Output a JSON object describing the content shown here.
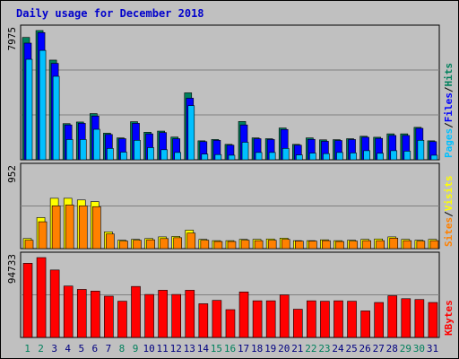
{
  "title": "Daily usage for December 2018",
  "colors": {
    "hits": "#00805c",
    "files": "#0000ff",
    "pages": "#00c0ff",
    "visits": "#ffff00",
    "sites": "#ff8000",
    "kbytes": "#ff0000",
    "weekend_label": "#00805c",
    "weekday_label": "#000080"
  },
  "chart_data": [
    {
      "type": "bar",
      "scale_label": "7975",
      "ylim": [
        0,
        7975
      ],
      "categories": [
        "1",
        "2",
        "3",
        "4",
        "5",
        "6",
        "7",
        "8",
        "9",
        "10",
        "11",
        "12",
        "13",
        "14",
        "15",
        "16",
        "17",
        "18",
        "19",
        "20",
        "21",
        "22",
        "23",
        "24",
        "25",
        "26",
        "27",
        "28",
        "29",
        "30",
        "31"
      ],
      "legend": [
        "Pages",
        "/",
        "Files",
        "/",
        "Hits"
      ],
      "series": [
        {
          "name": "Hits",
          "values": [
            7550,
            7975,
            6150,
            2230,
            2330,
            2850,
            1640,
            1350,
            2350,
            1700,
            1770,
            1400,
            4130,
            1170,
            1250,
            950,
            2360,
            1350,
            1300,
            1960,
            950,
            1350,
            1230,
            1240,
            1300,
            1450,
            1390,
            1600,
            1600,
            2000,
            1170
          ]
        },
        {
          "name": "Files",
          "values": [
            7200,
            7850,
            5950,
            2150,
            2250,
            2700,
            1560,
            1300,
            2250,
            1600,
            1680,
            1300,
            3800,
            1120,
            1200,
            900,
            2150,
            1300,
            1250,
            1870,
            900,
            1260,
            1140,
            1190,
            1250,
            1390,
            1320,
            1500,
            1500,
            1940,
            1120
          ]
        },
        {
          "name": "Pages",
          "values": [
            6200,
            6750,
            5150,
            1250,
            1250,
            1880,
            700,
            470,
            1200,
            750,
            620,
            450,
            3340,
            350,
            320,
            280,
            1080,
            450,
            450,
            700,
            300,
            410,
            380,
            450,
            420,
            560,
            400,
            560,
            530,
            1200,
            280
          ]
        }
      ]
    },
    {
      "type": "bar",
      "scale_label": "952",
      "ylim": [
        0,
        952
      ],
      "categories": [
        "1",
        "2",
        "3",
        "4",
        "5",
        "6",
        "7",
        "8",
        "9",
        "10",
        "11",
        "12",
        "13",
        "14",
        "15",
        "16",
        "17",
        "18",
        "19",
        "20",
        "21",
        "22",
        "23",
        "24",
        "25",
        "26",
        "27",
        "28",
        "29",
        "30",
        "31"
      ],
      "legend": [
        "Sites",
        "/",
        "Visits"
      ],
      "series": [
        {
          "name": "Visits",
          "values": [
            120,
            370,
            600,
            600,
            580,
            560,
            200,
            100,
            110,
            120,
            140,
            145,
            220,
            110,
            95,
            95,
            110,
            110,
            115,
            125,
            95,
            95,
            105,
            95,
            100,
            110,
            115,
            140,
            110,
            100,
            110
          ]
        },
        {
          "name": "Sites",
          "values": [
            100,
            320,
            510,
            520,
            510,
            500,
            175,
            90,
            100,
            105,
            120,
            130,
            185,
            100,
            85,
            85,
            100,
            95,
            100,
            110,
            90,
            90,
            95,
            85,
            90,
            95,
            95,
            125,
            95,
            90,
            95
          ]
        }
      ]
    },
    {
      "type": "bar",
      "scale_label": "94733",
      "ylim": [
        0,
        94733
      ],
      "categories": [
        "1",
        "2",
        "3",
        "4",
        "5",
        "6",
        "7",
        "8",
        "9",
        "10",
        "11",
        "12",
        "13",
        "14",
        "15",
        "16",
        "17",
        "18",
        "19",
        "20",
        "21",
        "22",
        "23",
        "24",
        "25",
        "26",
        "27",
        "28",
        "29",
        "30",
        "31"
      ],
      "legend": [
        "KBytes"
      ],
      "series": [
        {
          "name": "KBytes",
          "values": [
            88000,
            94733,
            80000,
            61000,
            57000,
            55000,
            49000,
            43000,
            60500,
            51000,
            56000,
            51000,
            56000,
            40000,
            44000,
            33000,
            54000,
            43500,
            43500,
            50500,
            33500,
            43500,
            43000,
            43500,
            43000,
            31500,
            41500,
            49500,
            46000,
            45000,
            41500
          ]
        }
      ]
    }
  ],
  "weekend_days": [
    "1",
    "2",
    "8",
    "9",
    "15",
    "16",
    "22",
    "23",
    "29",
    "30"
  ]
}
